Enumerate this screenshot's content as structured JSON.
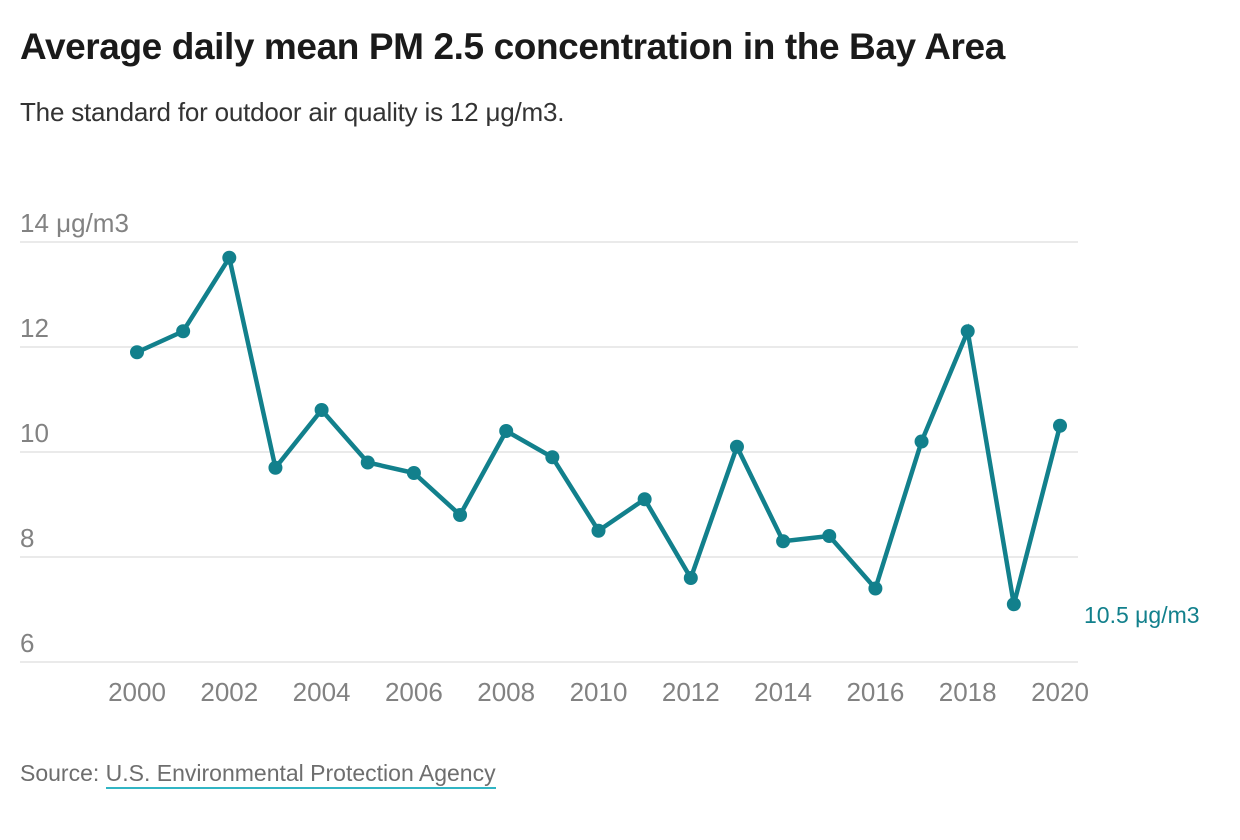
{
  "header": {
    "title": "Average daily mean PM 2.5 concentration in the Bay Area",
    "subtitle": "The standard for outdoor air quality is 12 μg/m3."
  },
  "colors": {
    "accent": "#12808c",
    "grid": "#e4e4e4",
    "tick": "#828282",
    "title": "#1a1a1a",
    "subtitle": "#333333",
    "source_text": "#6e6e6e",
    "link_underline": "#31b5c4",
    "background": "#ffffff"
  },
  "chart_data": {
    "type": "line",
    "title": "Average daily mean PM 2.5 concentration in the Bay Area",
    "subtitle": "The standard for outdoor air quality is 12 μg/m3.",
    "unit": "μg/m3",
    "x": [
      2000,
      2001,
      2002,
      2003,
      2004,
      2005,
      2006,
      2007,
      2008,
      2009,
      2010,
      2011,
      2012,
      2013,
      2014,
      2015,
      2016,
      2017,
      2018,
      2019,
      2020
    ],
    "series": [
      {
        "name": "Average daily mean PM 2.5 concentration",
        "values": [
          11.9,
          12.3,
          13.7,
          9.7,
          10.8,
          9.8,
          9.6,
          8.8,
          10.4,
          9.9,
          8.5,
          9.1,
          7.6,
          10.1,
          8.3,
          8.4,
          7.4,
          10.2,
          12.3,
          7.1,
          10.5
        ]
      }
    ],
    "ylim": [
      6,
      14.9
    ],
    "xlim": [
      2000,
      2020
    ],
    "y_ticks": [
      {
        "value": 14,
        "label": "14 μg/m3"
      },
      {
        "value": 12,
        "label": "12"
      },
      {
        "value": 10,
        "label": "10"
      },
      {
        "value": 8,
        "label": "8"
      },
      {
        "value": 6,
        "label": "6"
      }
    ],
    "x_ticks": [
      "2000",
      "2002",
      "2004",
      "2006",
      "2008",
      "2010",
      "2012",
      "2014",
      "2016",
      "2018",
      "2020"
    ],
    "grid": "horizontal",
    "legend": "none",
    "annotation": {
      "label": "10.5 μg/m3",
      "x": 2020,
      "value": 10.5
    }
  },
  "source": {
    "prefix": "Source: ",
    "link_text": "U.S. Environmental Protection Agency"
  }
}
